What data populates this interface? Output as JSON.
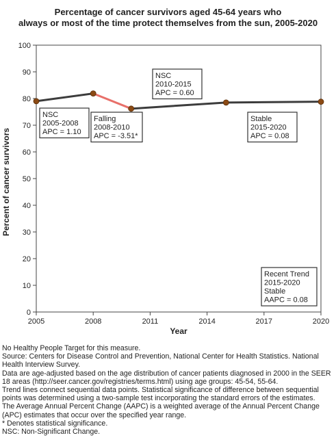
{
  "chart_data": {
    "type": "line",
    "title_line1": "Percentage of cancer survivors aged 45-64 years who",
    "title_line2": "always or most of the time protect themselves from the sun, 2005-2020",
    "xlabel": "Year",
    "ylabel": "Percent of cancer survivors",
    "xlim": [
      2005,
      2020
    ],
    "ylim": [
      0,
      100
    ],
    "x_ticks": [
      2005,
      2008,
      2011,
      2014,
      2017,
      2020
    ],
    "y_ticks": [
      0,
      10,
      20,
      30,
      40,
      50,
      60,
      70,
      80,
      90,
      100
    ],
    "grid": false,
    "points": [
      {
        "x": 2005,
        "y": 79.0
      },
      {
        "x": 2008,
        "y": 81.9
      },
      {
        "x": 2010,
        "y": 76.2
      },
      {
        "x": 2015,
        "y": 78.5
      },
      {
        "x": 2020,
        "y": 78.8
      }
    ],
    "segments": [
      {
        "from": 2005,
        "to": 2008,
        "trend": "NSC",
        "color": "#3c3c3c"
      },
      {
        "from": 2008,
        "to": 2010,
        "trend": "Falling",
        "color": "#e8706a"
      },
      {
        "from": 2010,
        "to": 2020,
        "trend": "NSC/Stable",
        "color": "#3c3c3c"
      }
    ],
    "marker_color": "#8b4a14",
    "annotations": [
      {
        "lines": [
          "NSC",
          "2005-2008",
          "APC =  1.10"
        ]
      },
      {
        "lines": [
          "Falling",
          "2008-2010",
          "APC = -3.51*"
        ]
      },
      {
        "lines": [
          "NSC",
          "2010-2015",
          "APC =  0.60"
        ]
      },
      {
        "lines": [
          "Stable",
          "2015-2020",
          "APC =  0.08"
        ]
      },
      {
        "lines": [
          "Recent Trend",
          "2015-2020",
          "Stable",
          "AAPC =  0.08"
        ]
      }
    ]
  },
  "footnotes": [
    "No Healthy People Target for this measure.",
    "Source: Centers for Disease Control and Prevention, National Center for Health Statistics. National Health Interview Survey.",
    "Data are age-adjusted based on the age distribution of cancer patients diagnosed in 2000 in the SEER 18 areas (http://seer.cancer.gov/registries/terms.html) using age groups: 45-54, 55-64.",
    "Trend lines connect sequential data points. Statistical significance of difference between sequential points was determined using a two-sample test incorporating the standard errors of the estimates.",
    "The Average Annual Percent Change (AAPC) is a weighted average of the Annual Percent Change (APC) estimates that occur over the specified year range.",
    "* Denotes statistical significance.",
    "NSC: Non-Significant Change."
  ]
}
